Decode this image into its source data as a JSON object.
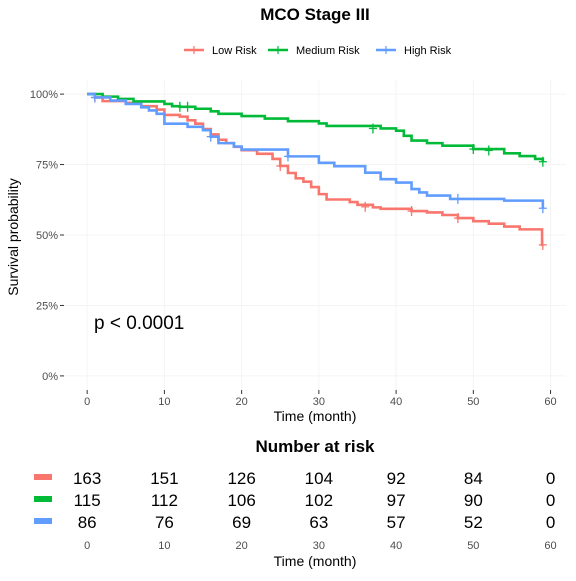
{
  "chart_data": {
    "type": "line",
    "title": "MCO Stage III",
    "xlabel": "Time (month)",
    "ylabel": "Survival probability",
    "xlim": [
      -3,
      62
    ],
    "ylim": [
      -0.05,
      1.05
    ],
    "x_ticks": [
      0,
      10,
      20,
      30,
      40,
      50,
      60
    ],
    "y_ticks": [
      {
        "value": 0,
        "label": "0%"
      },
      {
        "value": 0.25,
        "label": "25%"
      },
      {
        "value": 0.5,
        "label": "50%"
      },
      {
        "value": 0.75,
        "label": "75%"
      },
      {
        "value": 1.0,
        "label": "100%"
      }
    ],
    "grid": true,
    "legend_position": "top",
    "annotation": "p < 0.0001",
    "series": [
      {
        "name": "Low Risk",
        "color": "#F8766D",
        "steps": [
          [
            0,
            1.0
          ],
          [
            1,
            0.988
          ],
          [
            2,
            0.975
          ],
          [
            5,
            0.969
          ],
          [
            7,
            0.957
          ],
          [
            9,
            0.945
          ],
          [
            10,
            0.926
          ],
          [
            12,
            0.92
          ],
          [
            13,
            0.907
          ],
          [
            14,
            0.895
          ],
          [
            15,
            0.876
          ],
          [
            16,
            0.857
          ],
          [
            17,
            0.838
          ],
          [
            18,
            0.826
          ],
          [
            19,
            0.813
          ],
          [
            20,
            0.801
          ],
          [
            22,
            0.788
          ],
          [
            24,
            0.77
          ],
          [
            25,
            0.745
          ],
          [
            26,
            0.72
          ],
          [
            27,
            0.701
          ],
          [
            28,
            0.689
          ],
          [
            29,
            0.67
          ],
          [
            30,
            0.645
          ],
          [
            31,
            0.626
          ],
          [
            34,
            0.617
          ],
          [
            35,
            0.607
          ],
          [
            37,
            0.598
          ],
          [
            38,
            0.593
          ],
          [
            42,
            0.585
          ],
          [
            44,
            0.58
          ],
          [
            46,
            0.571
          ],
          [
            48,
            0.56
          ],
          [
            50,
            0.549
          ],
          [
            52,
            0.54
          ],
          [
            54,
            0.53
          ],
          [
            56,
            0.52
          ],
          [
            57,
            0.52
          ],
          [
            58.9,
            0.465
          ]
        ],
        "end": 59,
        "censors": [
          [
            1,
            0.988
          ],
          [
            25,
            0.745
          ],
          [
            36,
            0.6
          ],
          [
            42,
            0.585
          ],
          [
            48,
            0.56
          ],
          [
            59,
            0.465
          ]
        ]
      },
      {
        "name": "Medium Risk",
        "color": "#00BA38",
        "steps": [
          [
            0,
            1.0
          ],
          [
            2,
            0.991
          ],
          [
            4,
            0.983
          ],
          [
            6,
            0.974
          ],
          [
            10,
            0.965
          ],
          [
            11,
            0.957
          ],
          [
            12,
            0.955
          ],
          [
            14,
            0.948
          ],
          [
            16,
            0.939
          ],
          [
            17,
            0.93
          ],
          [
            20,
            0.922
          ],
          [
            23,
            0.913
          ],
          [
            26,
            0.904
          ],
          [
            30,
            0.896
          ],
          [
            31,
            0.887
          ],
          [
            38,
            0.878
          ],
          [
            40,
            0.87
          ],
          [
            41,
            0.852
          ],
          [
            42,
            0.835
          ],
          [
            44,
            0.826
          ],
          [
            46,
            0.817
          ],
          [
            50,
            0.805
          ],
          [
            54,
            0.79
          ],
          [
            56,
            0.78
          ],
          [
            58,
            0.77
          ],
          [
            59,
            0.76
          ]
        ],
        "end": 59,
        "censors": [
          [
            12,
            0.955
          ],
          [
            13,
            0.955
          ],
          [
            37,
            0.878
          ],
          [
            50,
            0.805
          ],
          [
            52,
            0.8
          ],
          [
            59,
            0.76
          ]
        ]
      },
      {
        "name": "High Risk",
        "color": "#619CFF",
        "steps": [
          [
            0,
            1.0
          ],
          [
            1,
            0.988
          ],
          [
            3,
            0.977
          ],
          [
            5,
            0.965
          ],
          [
            7,
            0.953
          ],
          [
            8,
            0.942
          ],
          [
            9,
            0.93
          ],
          [
            10,
            0.895
          ],
          [
            13,
            0.884
          ],
          [
            15,
            0.872
          ],
          [
            16,
            0.849
          ],
          [
            17,
            0.826
          ],
          [
            19,
            0.814
          ],
          [
            20,
            0.803
          ],
          [
            26,
            0.779
          ],
          [
            30,
            0.756
          ],
          [
            32,
            0.744
          ],
          [
            36,
            0.721
          ],
          [
            38,
            0.698
          ],
          [
            40,
            0.686
          ],
          [
            42,
            0.663
          ],
          [
            43,
            0.651
          ],
          [
            44,
            0.64
          ],
          [
            47,
            0.628
          ],
          [
            54,
            0.622
          ],
          [
            59,
            0.595
          ]
        ],
        "end": 59,
        "censors": [
          [
            1,
            0.988
          ],
          [
            16,
            0.849
          ],
          [
            26,
            0.779
          ],
          [
            48,
            0.628
          ],
          [
            59,
            0.595
          ]
        ]
      }
    ]
  },
  "risk_table": {
    "title": "Number at risk",
    "xlabel": "Time (month)",
    "times": [
      0,
      10,
      20,
      30,
      40,
      50,
      60
    ],
    "rows": [
      {
        "name": "Low Risk",
        "color": "#F8766D",
        "counts": [
          "163",
          "151",
          "126",
          "104",
          "92",
          "84",
          "0"
        ]
      },
      {
        "name": "Medium Risk",
        "color": "#00BA38",
        "counts": [
          "115",
          "112",
          "106",
          "102",
          "97",
          "90",
          "0"
        ]
      },
      {
        "name": "High Risk",
        "color": "#619CFF",
        "counts": [
          "86",
          "76",
          "69",
          "63",
          "57",
          "52",
          "0"
        ]
      }
    ]
  }
}
